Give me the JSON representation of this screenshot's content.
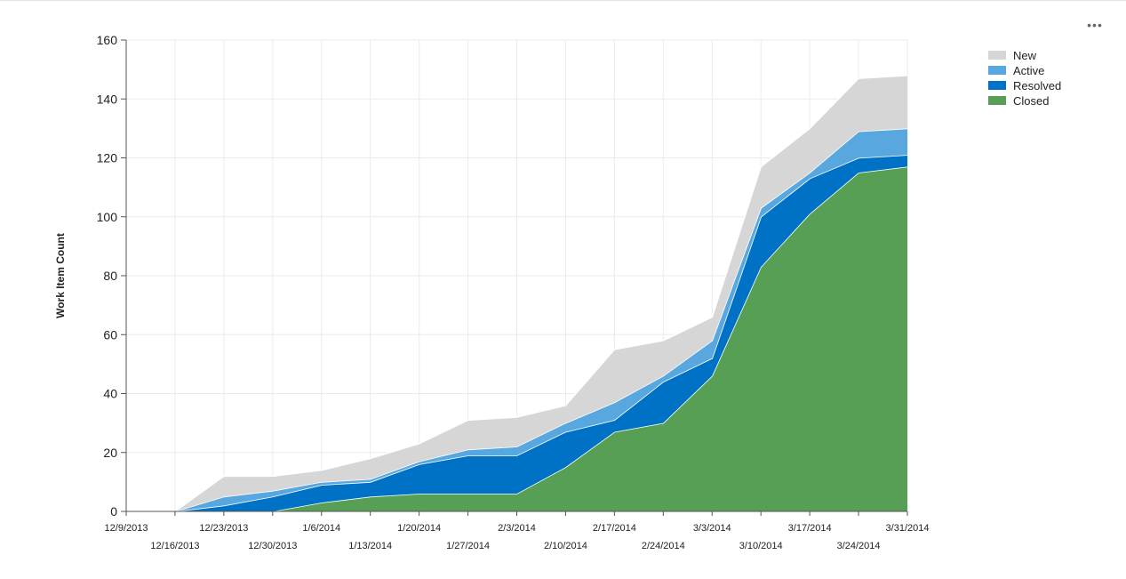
{
  "toolbar": {
    "more_label": "•••"
  },
  "chart_data": {
    "type": "area",
    "stacked": true,
    "ylabel": "Work Item Count",
    "xlabel": "",
    "ylim": [
      0,
      160
    ],
    "yticks": [
      0,
      20,
      40,
      60,
      80,
      100,
      120,
      140,
      160
    ],
    "grid": true,
    "legend_position": "top-right",
    "x": [
      "12/9/2013",
      "12/16/2013",
      "12/23/2013",
      "12/30/2013",
      "1/6/2014",
      "1/13/2014",
      "1/20/2014",
      "1/27/2014",
      "2/3/2014",
      "2/10/2014",
      "2/17/2014",
      "2/24/2014",
      "3/3/2014",
      "3/10/2014",
      "3/17/2014",
      "3/24/2014",
      "3/31/2014"
    ],
    "series": [
      {
        "name": "New",
        "color": "#d6d6d6",
        "values": [
          0,
          0,
          7,
          5,
          4,
          7,
          6,
          10,
          10,
          6,
          18,
          12,
          8,
          14,
          15,
          18,
          18
        ]
      },
      {
        "name": "Active",
        "color": "#59a7df",
        "values": [
          0,
          0,
          3,
          2,
          1,
          1,
          1,
          2,
          3,
          3,
          6,
          2,
          6,
          3,
          2,
          9,
          9
        ]
      },
      {
        "name": "Resolved",
        "color": "#0072c6",
        "values": [
          0,
          0,
          2,
          5,
          6,
          5,
          10,
          13,
          13,
          12,
          4,
          14,
          6,
          17,
          12,
          5,
          4
        ]
      },
      {
        "name": "Closed",
        "color": "#569f54",
        "values": [
          0,
          0,
          0,
          0,
          3,
          5,
          6,
          6,
          6,
          15,
          27,
          30,
          46,
          83,
          101,
          115,
          117
        ]
      }
    ]
  }
}
